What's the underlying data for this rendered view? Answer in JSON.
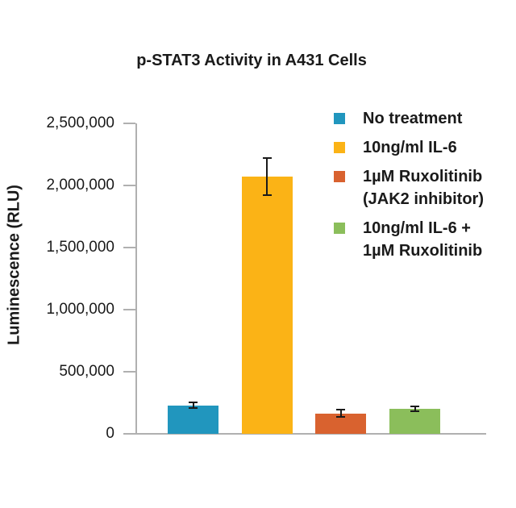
{
  "page": {
    "background": "#ffffff",
    "text_color": "#1a1a1a",
    "axis_color": "#b0b0b0",
    "error_bar_color": "#1a1a1a"
  },
  "chart_data": {
    "type": "bar",
    "title": "p-STAT3 Activity in A431 Cells",
    "xlabel": "",
    "ylabel": "Luminescence (RLU)",
    "ylim": [
      0,
      2500000
    ],
    "yticks": [
      0,
      500000,
      1000000,
      1500000,
      2000000,
      2500000
    ],
    "ytick_labels": [
      "0",
      "500,000",
      "1,000,000",
      "1,500,000",
      "2,000,000",
      "2,500,000"
    ],
    "grid": false,
    "legend_position": "upper right",
    "x_tick_labels_shown": false,
    "categories": [
      "No treatment",
      "10ng/ml IL-6",
      "1µM Ruxolitinib (JAK2 inhibitor)",
      "10ng/ml IL-6 + 1µM Ruxolitinib"
    ],
    "values": [
      230000,
      2070000,
      165000,
      200000
    ],
    "errors": [
      25000,
      150000,
      30000,
      20000
    ],
    "colors": [
      "#2196BE",
      "#FBB316",
      "#D9622F",
      "#8BBE5B"
    ],
    "legend": [
      {
        "lines": [
          "No treatment"
        ],
        "color": "#2196BE"
      },
      {
        "lines": [
          "10ng/ml IL-6"
        ],
        "color": "#FBB316"
      },
      {
        "lines": [
          "1µM Ruxolitinib",
          "(JAK2 inhibitor)"
        ],
        "color": "#D9622F"
      },
      {
        "lines": [
          "10ng/ml IL-6 +",
          "1µM Ruxolitinib"
        ],
        "color": "#8BBE5B"
      }
    ]
  }
}
